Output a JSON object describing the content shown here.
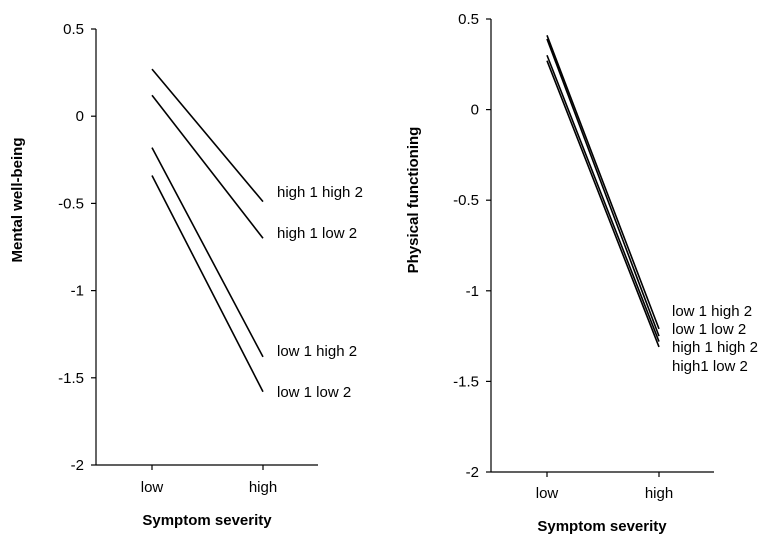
{
  "chart_data": [
    {
      "type": "line",
      "title": "",
      "xlabel": "Symptom severity",
      "ylabel": "Mental well-being",
      "categories": [
        "low",
        "high"
      ],
      "ylim": [
        -2,
        0.5
      ],
      "yticks": [
        0.5,
        0,
        -0.5,
        -1,
        -1.5,
        -2
      ],
      "ytick_labels": [
        "0.5",
        "0",
        "-0.5",
        "-1",
        "-1.5",
        "-2"
      ],
      "grid": false,
      "legend": "direct labels at line ends",
      "series": [
        {
          "name": "high 1 high 2",
          "values": [
            0.27,
            -0.49
          ]
        },
        {
          "name": "high 1 low 2",
          "values": [
            0.12,
            -0.7
          ]
        },
        {
          "name": "low 1 high 2",
          "values": [
            -0.18,
            -1.38
          ]
        },
        {
          "name": "low 1 low 2",
          "values": [
            -0.34,
            -1.58
          ]
        }
      ]
    },
    {
      "type": "line",
      "title": "",
      "xlabel": "Symptom severity",
      "ylabel": "Physical functioning",
      "categories": [
        "low",
        "high"
      ],
      "ylim": [
        -2,
        0.5
      ],
      "yticks": [
        0.5,
        0,
        -0.5,
        -1,
        -1.5,
        -2
      ],
      "ytick_labels": [
        "0.5",
        "0",
        "-0.5",
        "-1",
        "-1.5",
        "-2"
      ],
      "grid": false,
      "legend": "direct labels at line ends",
      "series": [
        {
          "name": "low 1 high 2",
          "values": [
            0.41,
            -1.21
          ]
        },
        {
          "name": "low 1 low 2",
          "values": [
            0.39,
            -1.25
          ]
        },
        {
          "name": "high 1 high 2",
          "values": [
            0.3,
            -1.28
          ]
        },
        {
          "name": "high1 low 2",
          "values": [
            0.27,
            -1.31
          ]
        }
      ]
    }
  ]
}
